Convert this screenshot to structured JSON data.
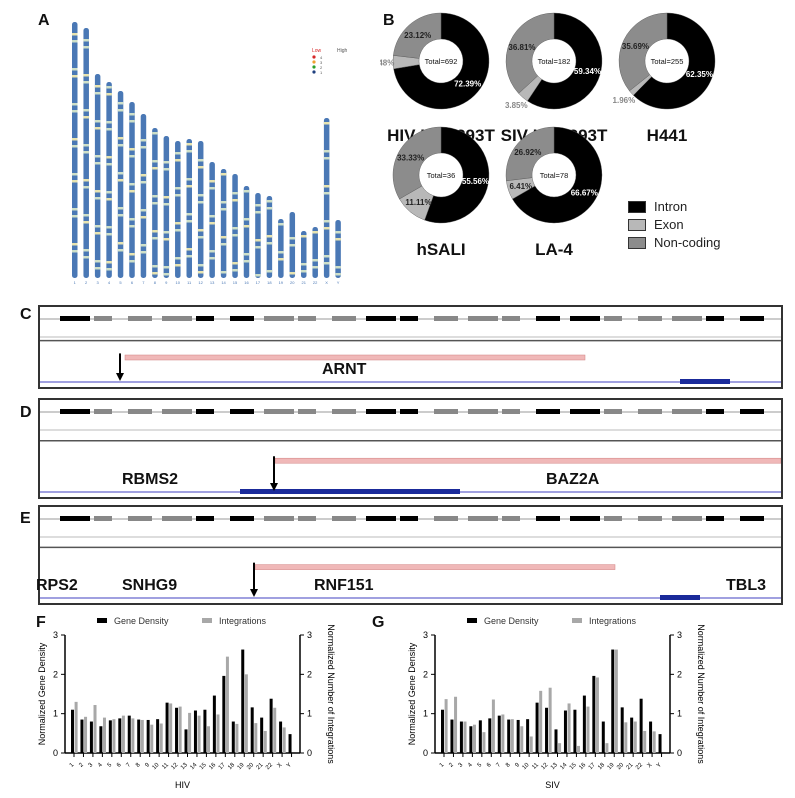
{
  "panels": {
    "a": "A",
    "b": "B",
    "c": "C",
    "d": "D",
    "e": "E",
    "f": "F",
    "g": "G"
  },
  "ideogram": {
    "legend_low": "Low",
    "legend_high": "High",
    "legend_levels": [
      "4",
      "3",
      "2",
      "1"
    ],
    "legend_colors": [
      "#d62728",
      "#f0a030",
      "#2ca02c",
      "#1f3f7f"
    ],
    "chromosomes": [
      "1",
      "2",
      "3",
      "4",
      "5",
      "6",
      "7",
      "8",
      "9",
      "10",
      "11",
      "12",
      "13",
      "14",
      "15",
      "16",
      "17",
      "18",
      "19",
      "20",
      "21",
      "22",
      "X",
      "Y"
    ],
    "band_color": "#4a78b5"
  },
  "chart_data": [
    {
      "type": "pie",
      "donut": true,
      "title": "HIV HEK293T",
      "center": "Total=692",
      "labels": [
        "Intron",
        "Exon",
        "Non-coding"
      ],
      "values": [
        72.39,
        4.48,
        23.12
      ],
      "value_labels": [
        "72.39%",
        "4.48%",
        "23.12%"
      ]
    },
    {
      "type": "pie",
      "donut": true,
      "title": "SIV HEK293T",
      "center": "Total=182",
      "labels": [
        "Intron",
        "Exon",
        "Non-coding"
      ],
      "values": [
        59.34,
        3.85,
        36.81
      ],
      "value_labels": [
        "59.34%",
        "3.85%",
        "36.81%"
      ]
    },
    {
      "type": "pie",
      "donut": true,
      "title": "H441",
      "center": "Total=255",
      "labels": [
        "Intron",
        "Exon",
        "Non-coding"
      ],
      "values": [
        62.35,
        1.96,
        35.69
      ],
      "value_labels": [
        "62.35%",
        "1.96%",
        "35.69%"
      ]
    },
    {
      "type": "pie",
      "donut": true,
      "title": "hSALI",
      "center": "Total=36",
      "labels": [
        "Intron",
        "Exon",
        "Non-coding"
      ],
      "values": [
        55.56,
        11.11,
        33.33
      ],
      "value_labels": [
        "55.56%",
        "11.11%",
        "33.33%"
      ]
    },
    {
      "type": "pie",
      "donut": true,
      "title": "LA-4",
      "center": "Total=78",
      "labels": [
        "Intron",
        "Exon",
        "Non-coding"
      ],
      "values": [
        66.67,
        6.41,
        26.92
      ],
      "value_labels": [
        "66.67%",
        "6.41%",
        "26.92%"
      ]
    },
    {
      "type": "bar",
      "xlabel": "HIV",
      "ylabel": "Normalized Gene Density",
      "y2label": "Normalized Number of Integrations",
      "ylim": [
        0,
        3
      ],
      "yticks": [
        "0",
        "1",
        "2",
        "3"
      ],
      "legend": "top",
      "categories": [
        "1",
        "2",
        "3",
        "4",
        "5",
        "6",
        "7",
        "8",
        "9",
        "10",
        "11",
        "12",
        "13",
        "14",
        "15",
        "16",
        "17",
        "18",
        "19",
        "20",
        "21",
        "22",
        "X",
        "Y"
      ],
      "series": [
        {
          "name": "Gene Density",
          "color": "#000000",
          "values": [
            1.1,
            0.85,
            0.8,
            0.68,
            0.83,
            0.88,
            0.95,
            0.85,
            0.84,
            0.86,
            1.28,
            1.15,
            0.6,
            1.08,
            1.1,
            1.46,
            1.96,
            0.8,
            2.63,
            1.16,
            0.9,
            1.38,
            0.8,
            0.48
          ]
        },
        {
          "name": "Integrations",
          "color": "#a8a8a8",
          "values": [
            1.3,
            0.92,
            1.22,
            0.9,
            0.86,
            0.95,
            0.88,
            0.84,
            0.72,
            0.75,
            1.26,
            1.18,
            1.02,
            0.95,
            0.68,
            0.98,
            2.45,
            0.74,
            2.0,
            0.76,
            0.56,
            1.15,
            0.65,
            0
          ]
        }
      ]
    },
    {
      "type": "bar",
      "xlabel": "SIV",
      "ylabel": "Normalized Gene Density",
      "y2label": "Normalized Number of Integrations",
      "ylim": [
        0,
        3
      ],
      "yticks": [
        "0",
        "1",
        "2",
        "3"
      ],
      "legend": "top",
      "categories": [
        "1",
        "2",
        "3",
        "4",
        "5",
        "6",
        "7",
        "8",
        "9",
        "10",
        "11",
        "12",
        "13",
        "14",
        "15",
        "16",
        "17",
        "18",
        "19",
        "20",
        "21",
        "22",
        "X",
        "Y"
      ],
      "series": [
        {
          "name": "Gene Density",
          "color": "#000000",
          "values": [
            1.1,
            0.85,
            0.8,
            0.68,
            0.83,
            0.88,
            0.95,
            0.85,
            0.84,
            0.86,
            1.28,
            1.15,
            0.6,
            1.08,
            1.1,
            1.46,
            1.96,
            0.8,
            2.63,
            1.16,
            0.9,
            1.38,
            0.8,
            0.48
          ]
        },
        {
          "name": "Integrations",
          "color": "#a8a8a8",
          "values": [
            1.37,
            1.43,
            0.8,
            0.72,
            0.53,
            1.36,
            0.98,
            0.86,
            0.68,
            0.42,
            1.58,
            1.66,
            0.25,
            1.26,
            0.18,
            1.18,
            1.92,
            0.25,
            2.63,
            0.78,
            0.8,
            0.56,
            0.55,
            0
          ]
        }
      ]
    }
  ],
  "donut_colors": {
    "Intron": "#000000",
    "Exon": "#b8b8b8",
    "Non-coding": "#8c8c8c"
  },
  "tracks": {
    "c_genes": [
      "ARNT"
    ],
    "d_genes": [
      "RBMS2",
      "BAZ2A"
    ],
    "e_genes": [
      "RPS2",
      "SNHG9",
      "RNF151",
      "TBL3"
    ]
  }
}
